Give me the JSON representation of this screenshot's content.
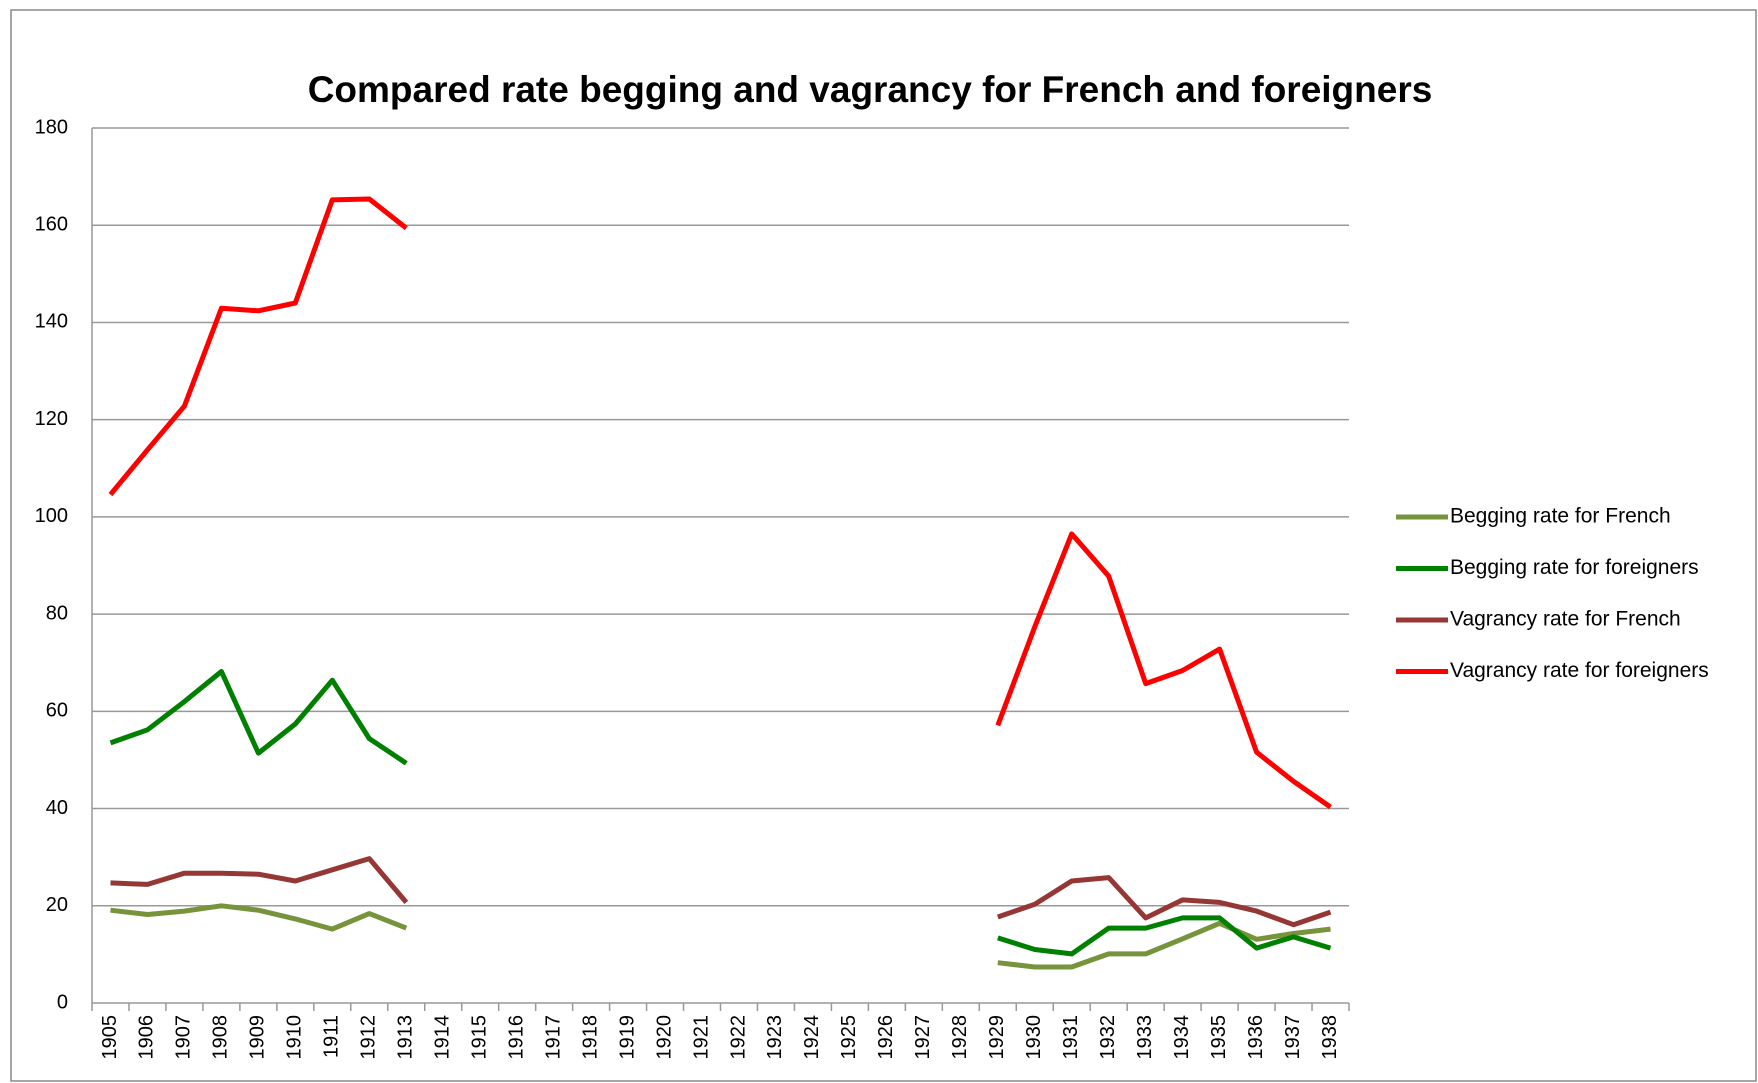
{
  "chart_data": {
    "type": "line",
    "title": "Compared rate begging and vagrancy for French and foreigners",
    "categories": [
      "1905",
      "1906",
      "1907",
      "1908",
      "1909",
      "1910",
      "1911",
      "1912",
      "1913",
      "1914",
      "1915",
      "1916",
      "1917",
      "1918",
      "1919",
      "1920",
      "1921",
      "1922",
      "1923",
      "1924",
      "1925",
      "1926",
      "1927",
      "1928",
      "1929",
      "1930",
      "1931",
      "1932",
      "1933",
      "1934",
      "1935",
      "1936",
      "1937",
      "1938"
    ],
    "series": [
      {
        "name": "Begging rate for French",
        "color": "#77933c",
        "values": [
          19.1,
          18.2,
          18.9,
          20,
          19.1,
          17.3,
          15.2,
          18.4,
          15.4,
          null,
          null,
          null,
          null,
          null,
          null,
          null,
          null,
          null,
          null,
          null,
          null,
          null,
          null,
          null,
          8.3,
          7.4,
          7.4,
          10.1,
          10.1,
          13.2,
          16.4,
          13.1,
          14.3,
          15.2
        ]
      },
      {
        "name": "Begging rate for foreigners",
        "color": "#008000",
        "values": [
          53.5,
          56.2,
          62,
          68.2,
          51.4,
          57.4,
          66.4,
          54.4,
          49.3,
          null,
          null,
          null,
          null,
          null,
          null,
          null,
          null,
          null,
          null,
          null,
          null,
          null,
          null,
          null,
          13.4,
          11,
          10.1,
          15.4,
          15.4,
          17.5,
          17.5,
          11.3,
          13.6,
          11.3
        ]
      },
      {
        "name": "Vagrancy rate for French",
        "color": "#953735",
        "values": [
          24.7,
          24.4,
          26.7,
          26.7,
          26.5,
          25.1,
          27.4,
          29.7,
          20.7,
          null,
          null,
          null,
          null,
          null,
          null,
          null,
          null,
          null,
          null,
          null,
          null,
          null,
          null,
          null,
          17.7,
          20.3,
          25.1,
          25.8,
          17.5,
          21.2,
          20.7,
          18.9,
          16.1,
          18.7
        ]
      },
      {
        "name": "Vagrancy rate for foreigners",
        "color": "#ff0000",
        "values": [
          104.6,
          113.8,
          122.8,
          142.9,
          142.4,
          144,
          165.2,
          165.4,
          159.4,
          null,
          null,
          null,
          null,
          null,
          null,
          null,
          null,
          null,
          null,
          null,
          null,
          null,
          null,
          null,
          57.1,
          77.4,
          96.5,
          87.8,
          65.7,
          68.4,
          72.8,
          51.6,
          45.6,
          40.3
        ]
      }
    ],
    "ylim": [
      0,
      180
    ],
    "yticks": [
      0,
      20,
      40,
      60,
      80,
      100,
      120,
      140,
      160,
      180
    ],
    "grid": true,
    "legend": "right"
  }
}
